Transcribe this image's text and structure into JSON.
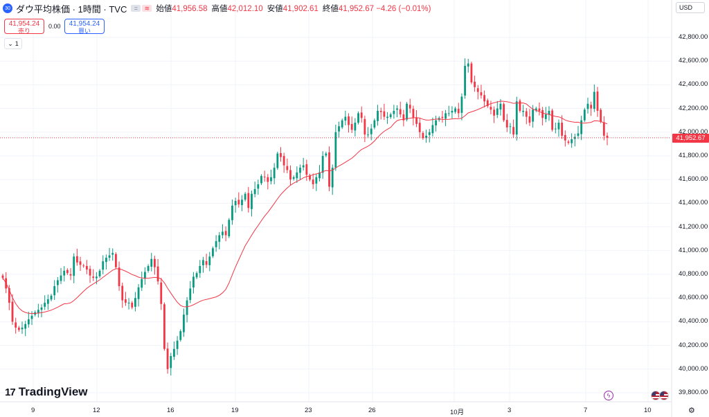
{
  "header": {
    "badge": "30",
    "title": "ダウ平均株価 · 1時間 · TVC",
    "ohlc": [
      {
        "label": "始値",
        "value": "41,956.58"
      },
      {
        "label": "高値",
        "value": "42,012.10"
      },
      {
        "label": "安値",
        "value": "41,902.61"
      },
      {
        "label": "終値",
        "value": "41,952.67 −4.26 (−0.01%)"
      }
    ]
  },
  "trade": {
    "sell_price": "41,954.24",
    "sell_label": "売り",
    "spread": "0.00",
    "buy_price": "41,954.24",
    "buy_label": "買い"
  },
  "collapse_count": "1",
  "currency": "USD",
  "current_price_label": "41,952.67",
  "brand": "TradingView",
  "colors": {
    "up": "#089981",
    "down": "#f23645",
    "ma": "#f23645",
    "grid": "#f0f3fa"
  },
  "chart_data": {
    "type": "candlestick",
    "price_ticks": [
      39800,
      40000,
      40200,
      40400,
      40600,
      40800,
      41000,
      41200,
      41400,
      41600,
      41800,
      42000,
      42200,
      42400,
      42600,
      42800
    ],
    "price_tick_labels": [
      "39,800.00",
      "40,000.00",
      "40,200.00",
      "40,400.00",
      "40,600.00",
      "40,800.00",
      "41,000.00",
      "41,200.00",
      "41,400.00",
      "41,600.00",
      "41,800.00",
      "42,000.00",
      "42,200.00",
      "42,400.00",
      "42,600.00",
      "42,800.00"
    ],
    "time_labels": [
      "9",
      "12",
      "16",
      "19",
      "23",
      "26",
      "10月",
      "3",
      "7",
      "10"
    ],
    "current_price": 41952.67,
    "close": [
      40770,
      40680,
      40560,
      40400,
      40350,
      40330,
      40350,
      40380,
      40420,
      40450,
      40480,
      40500,
      40520,
      40560,
      40590,
      40620,
      40700,
      40750,
      40790,
      40830,
      40810,
      40790,
      40950,
      40900,
      40880,
      40870,
      40840,
      40790,
      40770,
      40780,
      40830,
      40910,
      40940,
      40960,
      40980,
      40860,
      40700,
      40580,
      40560,
      40560,
      40520,
      40600,
      40690,
      40760,
      40820,
      40870,
      40930,
      40860,
      40740,
      40550,
      40170,
      40000,
      40110,
      40170,
      40240,
      40320,
      40460,
      40580,
      40680,
      40780,
      40810,
      40870,
      40920,
      40880,
      40950,
      41020,
      41080,
      41130,
      41160,
      41130,
      41260,
      41380,
      41420,
      41390,
      41430,
      41480,
      41360,
      41480,
      41520,
      41560,
      41630,
      41620,
      41580,
      41620,
      41700,
      41820,
      41790,
      41720,
      41680,
      41600,
      41620,
      41660,
      41700,
      41720,
      41640,
      41600,
      41560,
      41620,
      41660,
      41800,
      41820,
      41540,
      41700,
      42000,
      42050,
      42100,
      42130,
      42060,
      42020,
      42080,
      42160,
      42120,
      41980,
      41980,
      42030,
      42100,
      42180,
      42170,
      42130,
      42130,
      42150,
      42180,
      42200,
      42150,
      42100,
      42240,
      42200,
      42120,
      42070,
      42000,
      41950,
      41970,
      42000,
      42060,
      42100,
      42120,
      42120,
      42160,
      42160,
      42180,
      42200,
      42160,
      42300,
      42560,
      42580,
      42420,
      42380,
      42340,
      42310,
      42260,
      42220,
      42190,
      42140,
      42200,
      42240,
      42100,
      42040,
      42050,
      41980,
      42260,
      42180,
      42180,
      42130,
      42080,
      42190,
      42200,
      42180,
      42120,
      42150,
      42180,
      42020,
      42030,
      42080,
      41970,
      41930,
      41910,
      41940,
      41960,
      41990,
      42100,
      42190,
      42240,
      42200,
      42340,
      42180,
      42090,
      41970,
      41952.67
    ],
    "ma_period": 20
  }
}
